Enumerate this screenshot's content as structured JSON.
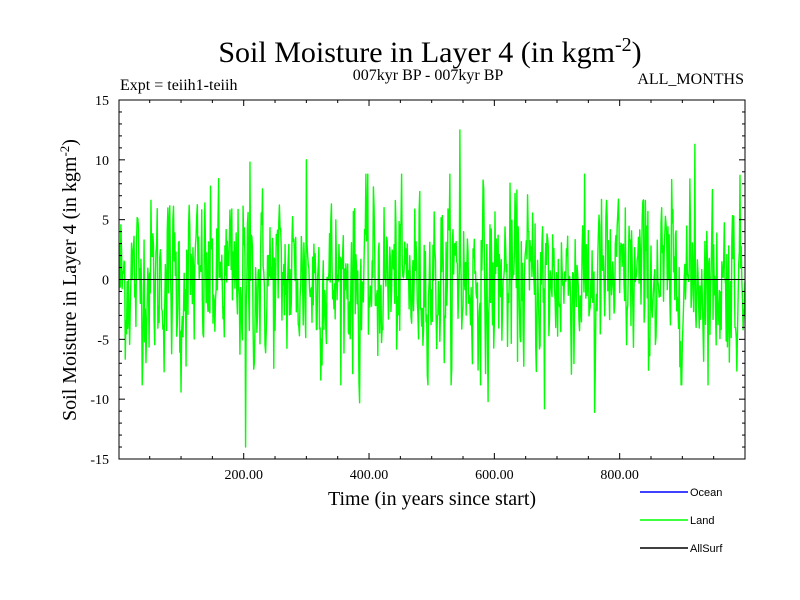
{
  "header": {
    "title": "Soil Moisture in Layer 4 (in kgm",
    "title_sup": "-2",
    "title_end": ")",
    "expt_label": "Expt = teiih1-teiih",
    "period_label": "007kyr BP - 007kyr BP",
    "months_label": "ALL_MONTHS"
  },
  "chart_data": {
    "type": "line",
    "title": "Soil Moisture in Layer 4 (in kgm-2)",
    "xlabel": "Time (in years since start)",
    "ylabel": "Soil Moisture in Layer 4 (in kgm-2)",
    "ylabel_main": "Soil Moisture in Layer 4 (in kgm",
    "ylabel_sup": "-2",
    "ylabel_end": ")",
    "xlim": [
      1,
      1000
    ],
    "ylim": [
      -15,
      15
    ],
    "x_ticks": [
      200,
      400,
      600,
      800
    ],
    "x_tick_labels": [
      "200.00",
      "400.00",
      "600.00",
      "800.00"
    ],
    "y_ticks": [
      -15,
      -10,
      -5,
      0,
      5,
      10,
      15
    ],
    "y_tick_labels": [
      "-15",
      "-10",
      "-5",
      "0",
      "5",
      "10",
      "15"
    ],
    "zero_line": true,
    "grid": false,
    "legend_position": "bottom-right",
    "series": [
      {
        "name": "Ocean",
        "color": "#0000ff",
        "values": []
      },
      {
        "name": "Land",
        "color": "#00ff00",
        "x_start": 1,
        "x_step": 1,
        "noise_std": 3.4,
        "extremes": [
          {
            "x": 203,
            "y": -14.0
          },
          {
            "x": 210,
            "y": 9.8
          },
          {
            "x": 385,
            "y": -10.3
          },
          {
            "x": 545,
            "y": 12.5
          },
          {
            "x": 920,
            "y": 11.3
          },
          {
            "x": 760,
            "y": -11.1
          },
          {
            "x": 100,
            "y": -9.4
          },
          {
            "x": 680,
            "y": -10.8
          },
          {
            "x": 300,
            "y": 10.0
          },
          {
            "x": 590,
            "y": -10.2
          }
        ]
      },
      {
        "name": "AllSurf",
        "color": "#000000",
        "values": []
      }
    ]
  }
}
